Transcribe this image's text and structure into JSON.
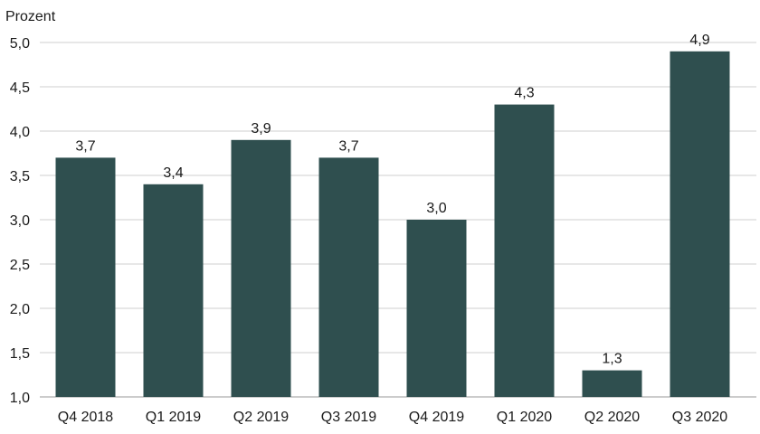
{
  "chart_data": {
    "type": "bar",
    "title": "",
    "ylabel": "Prozent",
    "xlabel": "",
    "categories": [
      "Q4 2018",
      "Q1 2019",
      "Q2 2019",
      "Q3 2019",
      "Q4 2019",
      "Q1 2020",
      "Q2 2020",
      "Q3 2020"
    ],
    "values": [
      3.7,
      3.4,
      3.9,
      3.7,
      3.0,
      4.3,
      1.3,
      4.9
    ],
    "value_labels": [
      "3,7",
      "3,4",
      "3,9",
      "3,7",
      "3,0",
      "4,3",
      "1,3",
      "4,9"
    ],
    "ylim": [
      1.0,
      5.0
    ],
    "yticks": [
      1.0,
      1.5,
      2.0,
      2.5,
      3.0,
      3.5,
      4.0,
      4.5,
      5.0
    ],
    "ytick_labels": [
      "1,0",
      "1,5",
      "2,0",
      "2,5",
      "3,0",
      "3,5",
      "4,0",
      "4,5",
      "5,0"
    ],
    "grid": true,
    "legend": false,
    "bar_color": "#2f4f4f"
  }
}
